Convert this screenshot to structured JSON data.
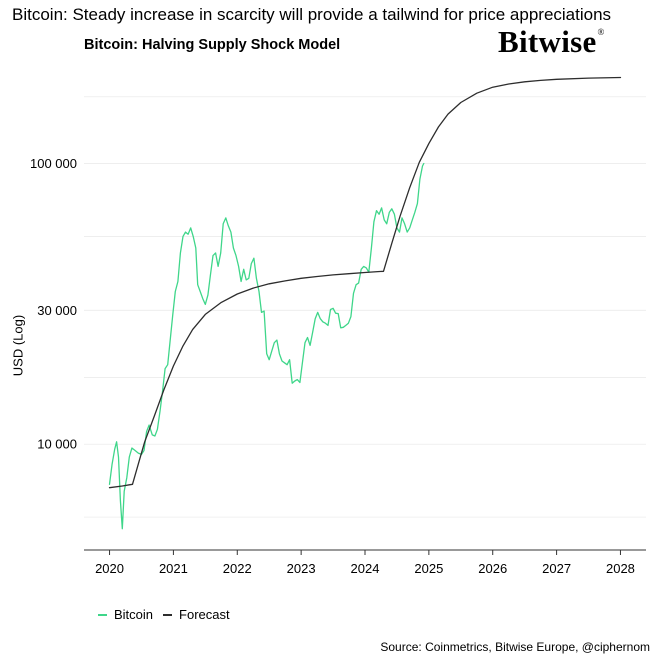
{
  "headline": "Bitcoin: Steady increase in scarcity will provide a tailwind for price appreciations",
  "brand": {
    "name": "Bitwise",
    "mark": "®"
  },
  "source": "Source: Coinmetrics, Bitwise Europe, @ciphernom",
  "colors": {
    "bitcoin": "#3fd68a",
    "forecast": "#2d2d2d",
    "grid": "#ececec",
    "axis": "#333333"
  },
  "chart_data": {
    "type": "line",
    "title": "Bitcoin: Halving Supply Shock Model",
    "xlabel": "",
    "ylabel": "USD (Log)",
    "y_scale": "log",
    "xlim": [
      2019.6,
      2028.4
    ],
    "ylim": [
      4200,
      230000
    ],
    "x_ticks": [
      {
        "value": 2020,
        "label": "2020"
      },
      {
        "value": 2021,
        "label": "2021"
      },
      {
        "value": 2022,
        "label": "2022"
      },
      {
        "value": 2023,
        "label": "2023"
      },
      {
        "value": 2024,
        "label": "2024"
      },
      {
        "value": 2025,
        "label": "2025"
      },
      {
        "value": 2026,
        "label": "2026"
      },
      {
        "value": 2027,
        "label": "2027"
      },
      {
        "value": 2028,
        "label": "2028"
      }
    ],
    "y_ticks": [
      {
        "value": 10000,
        "label": "10 000"
      },
      {
        "value": 30000,
        "label": "30 000"
      },
      {
        "value": 100000,
        "label": "100 000"
      }
    ],
    "grid": true,
    "legend_position": "bottom-left",
    "series": [
      {
        "name": "Bitcoin",
        "color": "#3fd68a",
        "points": [
          [
            2020.0,
            7200
          ],
          [
            2020.04,
            8500
          ],
          [
            2020.08,
            9600
          ],
          [
            2020.11,
            10200
          ],
          [
            2020.14,
            9000
          ],
          [
            2020.17,
            6300
          ],
          [
            2020.2,
            5000
          ],
          [
            2020.23,
            6800
          ],
          [
            2020.27,
            7600
          ],
          [
            2020.31,
            9000
          ],
          [
            2020.35,
            9700
          ],
          [
            2020.4,
            9500
          ],
          [
            2020.45,
            9300
          ],
          [
            2020.5,
            9200
          ],
          [
            2020.54,
            9500
          ],
          [
            2020.58,
            11100
          ],
          [
            2020.62,
            11700
          ],
          [
            2020.67,
            10800
          ],
          [
            2020.71,
            10700
          ],
          [
            2020.75,
            11300
          ],
          [
            2020.79,
            13100
          ],
          [
            2020.83,
            15500
          ],
          [
            2020.87,
            18600
          ],
          [
            2020.91,
            19200
          ],
          [
            2020.95,
            23500
          ],
          [
            2020.99,
            29000
          ],
          [
            2021.03,
            35000
          ],
          [
            2021.07,
            38000
          ],
          [
            2021.11,
            48000
          ],
          [
            2021.15,
            55000
          ],
          [
            2021.19,
            57000
          ],
          [
            2021.23,
            56000
          ],
          [
            2021.27,
            59000
          ],
          [
            2021.31,
            55000
          ],
          [
            2021.35,
            50000
          ],
          [
            2021.38,
            37000
          ],
          [
            2021.42,
            35000
          ],
          [
            2021.46,
            33000
          ],
          [
            2021.5,
            31500
          ],
          [
            2021.54,
            34000
          ],
          [
            2021.58,
            40000
          ],
          [
            2021.62,
            47000
          ],
          [
            2021.66,
            48000
          ],
          [
            2021.7,
            43000
          ],
          [
            2021.74,
            48000
          ],
          [
            2021.78,
            61000
          ],
          [
            2021.82,
            64000
          ],
          [
            2021.86,
            60000
          ],
          [
            2021.9,
            57000
          ],
          [
            2021.94,
            50000
          ],
          [
            2021.98,
            47000
          ],
          [
            2022.02,
            43000
          ],
          [
            2022.06,
            38000
          ],
          [
            2022.1,
            42000
          ],
          [
            2022.14,
            38500
          ],
          [
            2022.18,
            39000
          ],
          [
            2022.22,
            44000
          ],
          [
            2022.26,
            46000
          ],
          [
            2022.3,
            39000
          ],
          [
            2022.34,
            35000
          ],
          [
            2022.38,
            29500
          ],
          [
            2022.42,
            29800
          ],
          [
            2022.46,
            21000
          ],
          [
            2022.5,
            20000
          ],
          [
            2022.54,
            21500
          ],
          [
            2022.58,
            23000
          ],
          [
            2022.62,
            23500
          ],
          [
            2022.66,
            21000
          ],
          [
            2022.7,
            19800
          ],
          [
            2022.74,
            19500
          ],
          [
            2022.78,
            19200
          ],
          [
            2022.82,
            20000
          ],
          [
            2022.86,
            16500
          ],
          [
            2022.9,
            16800
          ],
          [
            2022.94,
            17000
          ],
          [
            2022.98,
            16600
          ],
          [
            2023.02,
            19500
          ],
          [
            2023.06,
            23000
          ],
          [
            2023.1,
            24000
          ],
          [
            2023.14,
            22500
          ],
          [
            2023.18,
            25000
          ],
          [
            2023.22,
            28000
          ],
          [
            2023.26,
            29500
          ],
          [
            2023.3,
            28000
          ],
          [
            2023.34,
            27300
          ],
          [
            2023.38,
            27000
          ],
          [
            2023.42,
            26500
          ],
          [
            2023.46,
            30200
          ],
          [
            2023.5,
            30500
          ],
          [
            2023.54,
            29300
          ],
          [
            2023.58,
            29200
          ],
          [
            2023.62,
            26000
          ],
          [
            2023.66,
            26100
          ],
          [
            2023.7,
            26500
          ],
          [
            2023.74,
            27000
          ],
          [
            2023.78,
            28500
          ],
          [
            2023.82,
            34500
          ],
          [
            2023.86,
            37000
          ],
          [
            2023.9,
            37500
          ],
          [
            2023.94,
            42000
          ],
          [
            2023.98,
            43000
          ],
          [
            2024.02,
            42500
          ],
          [
            2024.06,
            41000
          ],
          [
            2024.1,
            50000
          ],
          [
            2024.14,
            62000
          ],
          [
            2024.18,
            68000
          ],
          [
            2024.22,
            66000
          ],
          [
            2024.26,
            69500
          ],
          [
            2024.3,
            63000
          ],
          [
            2024.34,
            61000
          ],
          [
            2024.38,
            67000
          ],
          [
            2024.42,
            69000
          ],
          [
            2024.46,
            66000
          ],
          [
            2024.5,
            59000
          ],
          [
            2024.54,
            57000
          ],
          [
            2024.58,
            64000
          ],
          [
            2024.62,
            61000
          ],
          [
            2024.66,
            57000
          ],
          [
            2024.7,
            59000
          ],
          [
            2024.74,
            63000
          ],
          [
            2024.78,
            67000
          ],
          [
            2024.82,
            72000
          ],
          [
            2024.86,
            88000
          ],
          [
            2024.9,
            98000
          ],
          [
            2024.92,
            100000
          ]
        ]
      },
      {
        "name": "Forecast",
        "color": "#2d2d2d",
        "points": [
          [
            2020.0,
            7000
          ],
          [
            2020.2,
            7100
          ],
          [
            2020.36,
            7200
          ],
          [
            2020.45,
            8500
          ],
          [
            2020.55,
            10200
          ],
          [
            2020.7,
            12600
          ],
          [
            2020.85,
            15600
          ],
          [
            2021.0,
            19000
          ],
          [
            2021.15,
            22400
          ],
          [
            2021.3,
            25600
          ],
          [
            2021.5,
            29000
          ],
          [
            2021.75,
            32000
          ],
          [
            2022.0,
            34300
          ],
          [
            2022.25,
            36000
          ],
          [
            2022.5,
            37300
          ],
          [
            2022.75,
            38200
          ],
          [
            2023.0,
            39000
          ],
          [
            2023.25,
            39600
          ],
          [
            2023.5,
            40100
          ],
          [
            2023.75,
            40500
          ],
          [
            2024.0,
            40900
          ],
          [
            2024.2,
            41200
          ],
          [
            2024.29,
            41300
          ],
          [
            2024.42,
            52000
          ],
          [
            2024.55,
            65000
          ],
          [
            2024.7,
            82000
          ],
          [
            2024.85,
            101000
          ],
          [
            2025.0,
            118000
          ],
          [
            2025.15,
            135000
          ],
          [
            2025.3,
            150000
          ],
          [
            2025.5,
            165000
          ],
          [
            2025.75,
            178000
          ],
          [
            2026.0,
            187000
          ],
          [
            2026.25,
            192000
          ],
          [
            2026.5,
            195500
          ],
          [
            2026.75,
            197800
          ],
          [
            2027.0,
            199500
          ],
          [
            2027.5,
            201500
          ],
          [
            2028.0,
            202500
          ]
        ]
      }
    ]
  }
}
